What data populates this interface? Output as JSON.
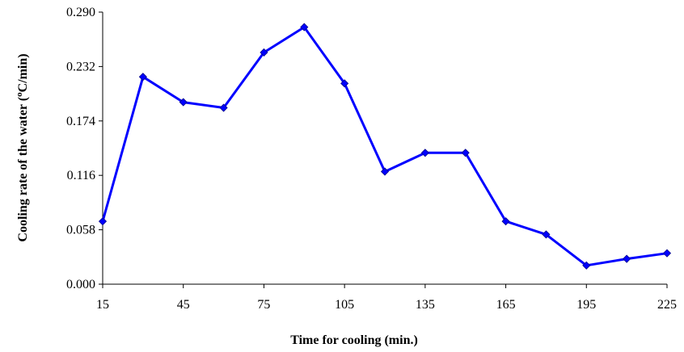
{
  "chart_data": {
    "type": "line",
    "xlabel": "Time for cooling (min.)",
    "ylabel_main": "Cooling rate of the water (",
    "ylabel_sup": "o",
    "ylabel_tail": "C/min)",
    "xlim": [
      15,
      225
    ],
    "ylim": [
      0.0,
      0.29
    ],
    "x_ticks": [
      "15",
      "45",
      "75",
      "105",
      "135",
      "165",
      "195",
      "225"
    ],
    "y_ticks": [
      "0.000",
      "0.058",
      "0.116",
      "0.174",
      "0.232",
      "0.290"
    ],
    "grid": false,
    "series": [
      {
        "color": "#0000ff",
        "marker": "diamond",
        "x": [
          15,
          30,
          45,
          60,
          75,
          90,
          105,
          120,
          135,
          150,
          165,
          180,
          195,
          210,
          225
        ],
        "y": [
          0.067,
          0.221,
          0.194,
          0.188,
          0.247,
          0.274,
          0.214,
          0.12,
          0.14,
          0.14,
          0.067,
          0.053,
          0.02,
          0.027,
          0.033
        ]
      }
    ]
  }
}
